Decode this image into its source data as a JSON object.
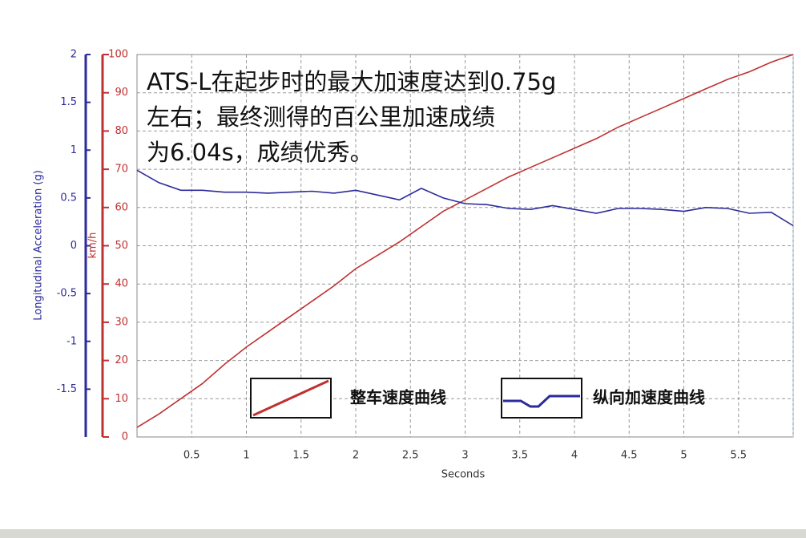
{
  "chart_data": {
    "type": "line",
    "annotation": [
      "ATS-L在起步时的最大加速度达到0.75g",
      "左右；最终测得的百公里加速成绩",
      "为6.04s，成绩优秀。"
    ],
    "x_label": "Seconds",
    "y_label": "km/h",
    "y2_label": "Longitudinal Acceleration (g)",
    "xlim": [
      0,
      6
    ],
    "xticks": [
      0.5,
      1,
      1.5,
      2,
      2.5,
      3,
      3.5,
      4,
      4.5,
      5,
      5.5
    ],
    "ylim": [
      0,
      100
    ],
    "yticks": [
      0,
      10,
      20,
      30,
      40,
      50,
      60,
      70,
      80,
      90,
      100
    ],
    "y2lim": [
      -2,
      2
    ],
    "y2ticks": [
      -1.5,
      -1,
      -0.5,
      0,
      0.5,
      1,
      1.5,
      2
    ],
    "grid": true,
    "x": [
      0,
      0.2,
      0.4,
      0.6,
      0.8,
      1.0,
      1.2,
      1.4,
      1.6,
      1.8,
      2.0,
      2.2,
      2.4,
      2.6,
      2.8,
      3.0,
      3.2,
      3.4,
      3.6,
      3.8,
      4.0,
      4.2,
      4.4,
      4.6,
      4.8,
      5.0,
      5.2,
      5.4,
      5.6,
      5.8,
      6.0
    ],
    "series": [
      {
        "name": "整车速度曲线",
        "color": "#c03030",
        "values": [
          2.5,
          6,
          10,
          14,
          19,
          23.5,
          27.5,
          31.5,
          35.5,
          39.5,
          44,
          47.5,
          51,
          55,
          59,
          62,
          65,
          68,
          70.5,
          73,
          75.5,
          78,
          81,
          83.5,
          86,
          88.5,
          91,
          93.5,
          95.5,
          98,
          100
        ]
      },
      {
        "name": "纵向加速度曲线",
        "color": "#2b2b9b",
        "axis": "y2",
        "values": [
          0.79,
          0.66,
          0.58,
          0.58,
          0.56,
          0.56,
          0.55,
          0.56,
          0.57,
          0.55,
          0.58,
          0.53,
          0.48,
          0.6,
          0.5,
          0.44,
          0.43,
          0.39,
          0.38,
          0.42,
          0.38,
          0.34,
          0.39,
          0.39,
          0.38,
          0.36,
          0.4,
          0.39,
          0.34,
          0.35,
          0.21
        ]
      }
    ]
  }
}
